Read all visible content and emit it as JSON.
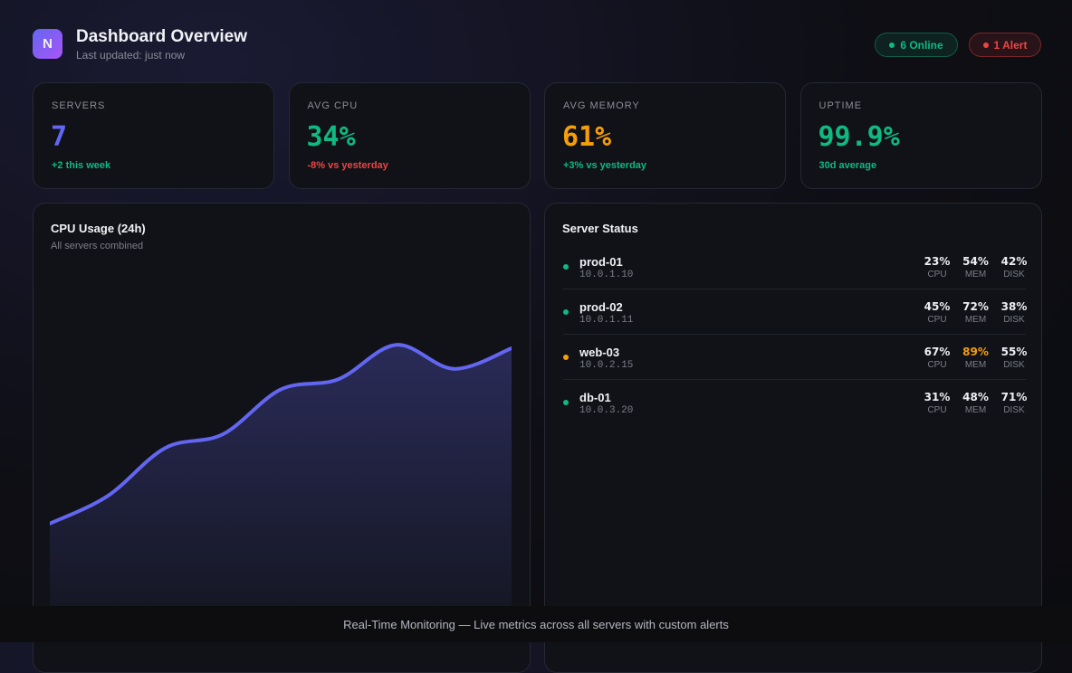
{
  "header": {
    "logo": "N",
    "title": "Dashboard Overview",
    "subtitle": "Last updated: just now",
    "badges": [
      {
        "text": "6 Online",
        "color": "#10b981"
      },
      {
        "text": "1 Alert",
        "color": "#ef4444"
      }
    ]
  },
  "stats": [
    {
      "label": "SERVERS",
      "value": "7",
      "note": "+2 this week",
      "color": "#6366f1",
      "note_color": "#10b981"
    },
    {
      "label": "AVG CPU",
      "value": "34%",
      "note": "-8% vs yesterday",
      "color": "#10b981",
      "note_color": "#ef4444"
    },
    {
      "label": "AVG MEMORY",
      "value": "61%",
      "note": "+3% vs yesterday",
      "color": "#f59e0b",
      "note_color": "#10b981"
    },
    {
      "label": "UPTIME",
      "value": "99.9%",
      "note": "30d average",
      "color": "#10b981",
      "note_color": "#10b981"
    }
  ],
  "chart_data": {
    "type": "area",
    "title": "CPU Usage (24h)",
    "subtitle": "All servers combined",
    "color": "#6366f1",
    "values": [
      24,
      32,
      46,
      50,
      63,
      66,
      76,
      69,
      75
    ],
    "ylim": [
      0,
      100
    ]
  },
  "server_status": {
    "title": "Server Status",
    "servers": [
      {
        "name": "prod-01",
        "ip": "10.0.1.10",
        "status_color": "#10b981",
        "metrics": [
          {
            "value": "23%",
            "label": "CPU"
          },
          {
            "value": "54%",
            "label": "MEM"
          },
          {
            "value": "42%",
            "label": "DISK"
          }
        ]
      },
      {
        "name": "prod-02",
        "ip": "10.0.1.11",
        "status_color": "#10b981",
        "metrics": [
          {
            "value": "45%",
            "label": "CPU"
          },
          {
            "value": "72%",
            "label": "MEM"
          },
          {
            "value": "38%",
            "label": "DISK"
          }
        ]
      },
      {
        "name": "web-03",
        "ip": "10.0.2.15",
        "status_color": "#f59e0b",
        "metrics": [
          {
            "value": "67%",
            "label": "CPU"
          },
          {
            "value": "89%",
            "label": "MEM",
            "color": "#f59e0b"
          },
          {
            "value": "55%",
            "label": "DISK"
          }
        ]
      },
      {
        "name": "db-01",
        "ip": "10.0.3.20",
        "status_color": "#10b981",
        "metrics": [
          {
            "value": "31%",
            "label": "CPU"
          },
          {
            "value": "48%",
            "label": "MEM"
          },
          {
            "value": "71%",
            "label": "DISK"
          }
        ]
      }
    ]
  },
  "footer": {
    "text": "Real-Time Monitoring — Live metrics across all servers with custom alerts"
  }
}
